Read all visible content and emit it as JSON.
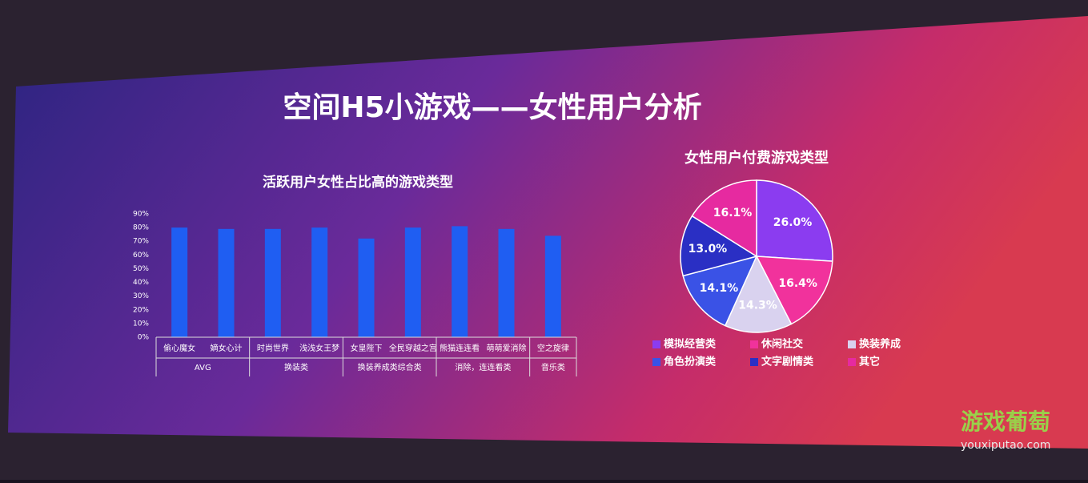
{
  "slide_title": "空间H5小游戏——女性用户分析",
  "chart_data": [
    {
      "type": "bar",
      "title": "活跃用户女性占比高的游戏类型",
      "categories": [
        "偷心魔女",
        "嫡女心计",
        "时尚世界",
        "浅浅女王梦",
        "女皇陛下",
        "全民穿越之宫",
        "熊猫连连看",
        "萌萌爱消除",
        "空之旋律"
      ],
      "values": [
        80,
        79,
        79,
        80,
        72,
        80,
        81,
        79,
        74
      ],
      "groups": [
        {
          "name": "AVG",
          "count": 2
        },
        {
          "name": "换装类",
          "count": 2
        },
        {
          "name": "换装养成类综合类",
          "count": 2
        },
        {
          "name": "消除，连连看类",
          "count": 2
        },
        {
          "name": "音乐类",
          "count": 1
        }
      ],
      "color": "#1f5ef2",
      "ylim": [
        0,
        90
      ],
      "yticks": [
        {
          "value": 0,
          "label": "0%"
        },
        {
          "value": 10,
          "label": "10%"
        },
        {
          "value": 20,
          "label": "20%"
        },
        {
          "value": 30,
          "label": "30%"
        },
        {
          "value": 40,
          "label": "40%"
        },
        {
          "value": 50,
          "label": "50%"
        },
        {
          "value": 60,
          "label": "60%"
        },
        {
          "value": 70,
          "label": "70%"
        },
        {
          "value": 80,
          "label": "80%"
        },
        {
          "value": 90,
          "label": "90%"
        }
      ],
      "grid": false
    },
    {
      "type": "pie",
      "title": "女性用户付费游戏类型",
      "categories": [
        "模拟经营类",
        "休闲社交",
        "换装养成",
        "角色扮演类",
        "文字剧情类",
        "其它"
      ],
      "values": [
        26.0,
        16.4,
        14.3,
        14.1,
        13.0,
        16.1
      ],
      "value_labels": [
        "26.0%",
        "16.4%",
        "14.3%",
        "14.1%",
        "13.0%",
        "16.1%"
      ],
      "colors": [
        "#8b3cf0",
        "#f1329c",
        "#d9d2ef",
        "#3a52e6",
        "#2a2fc4",
        "#e62aa0"
      ]
    }
  ],
  "watermark": {
    "name": "游戏葡萄",
    "url": "youxiputao.com"
  }
}
